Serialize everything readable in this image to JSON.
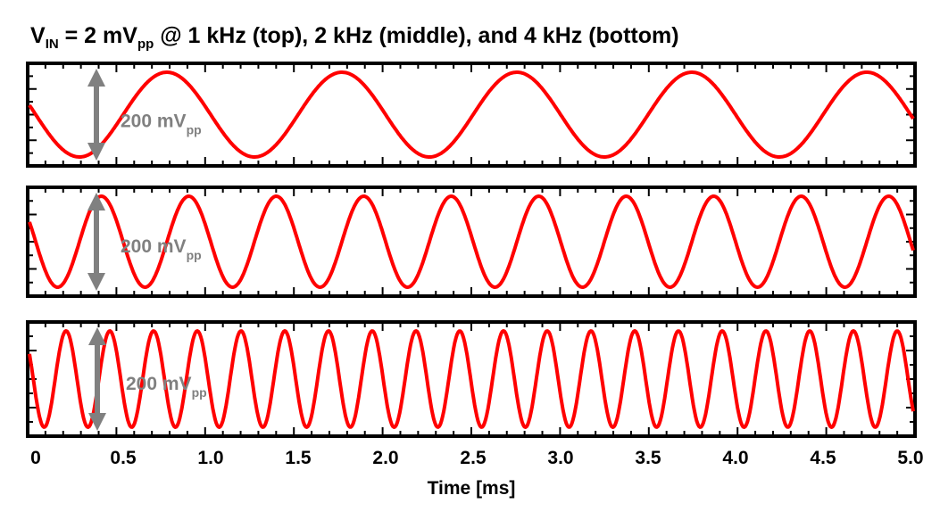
{
  "title": {
    "v": "V",
    "v_sub": "IN",
    "mid": " = 2 mV",
    "mid_sub": "pp",
    "rest": " @ 1 kHz (top), 2 kHz (middle), and 4 kHz (bottom)"
  },
  "annotation": {
    "main": "200 mV",
    "sub": "pp"
  },
  "chart_data": {
    "type": "line",
    "xlabel": "Time [ms]",
    "ylabel": "",
    "xlim": [
      0,
      5.0
    ],
    "x_ticks": [
      "0",
      "0.5",
      "1.0",
      "1.5",
      "2.0",
      "2.5",
      "3.0",
      "3.5",
      "4.0",
      "4.5",
      "5.0"
    ],
    "amplitude_label": "200 mVpp",
    "series_color": "#ff0000",
    "arrow_color": "#808080",
    "panels": [
      {
        "freq_khz": 1,
        "vpp_mv": 200,
        "phase_deg": 180
      },
      {
        "freq_khz": 2,
        "vpp_mv": 200,
        "phase_deg": 180
      },
      {
        "freq_khz": 4,
        "vpp_mv": 200,
        "phase_deg": 200
      }
    ]
  }
}
